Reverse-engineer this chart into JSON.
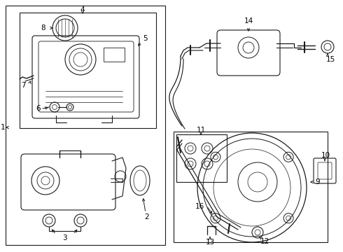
{
  "background_color": "#ffffff",
  "line_color": "#1a1a1a",
  "fig_width": 4.9,
  "fig_height": 3.6,
  "dpi": 100
}
